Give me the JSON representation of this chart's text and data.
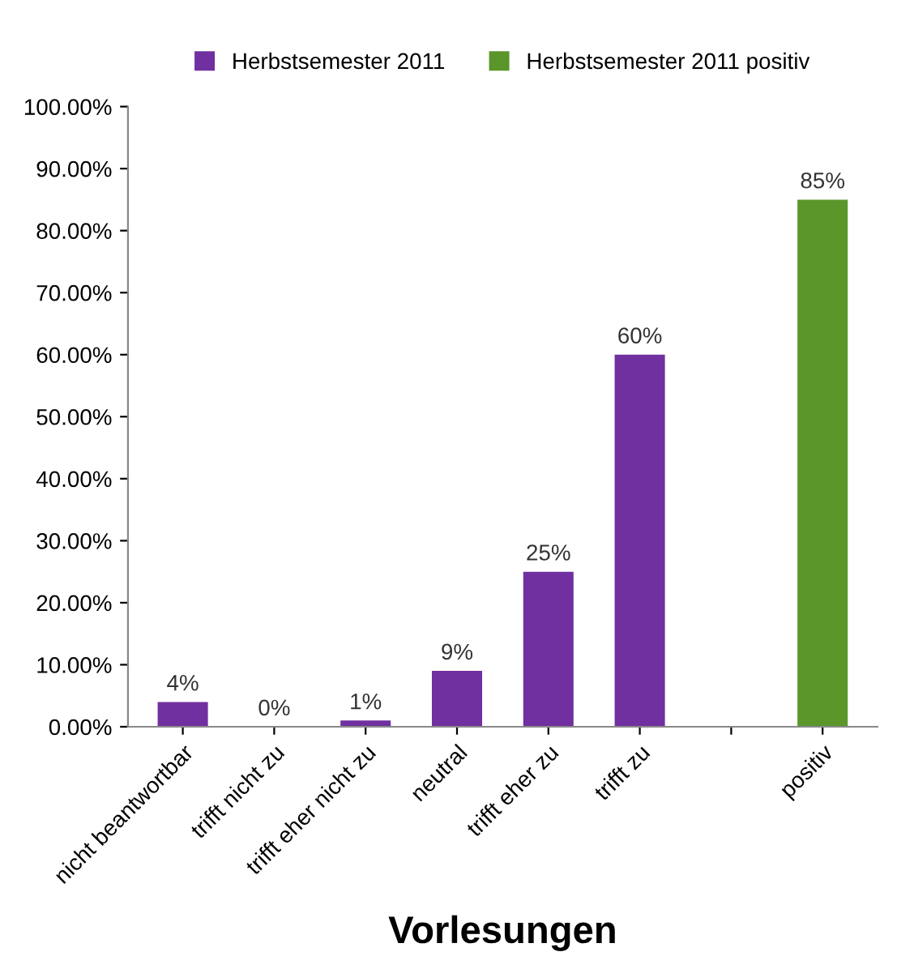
{
  "chart_data": {
    "type": "bar",
    "xlabel": "Vorlesungen",
    "categories": [
      "nicht beantwortbar",
      "trifft nicht zu",
      "trifft eher nicht zu",
      "neutral",
      "trifft eher zu",
      "trifft zu",
      null,
      "positiv"
    ],
    "series": [
      {
        "name": "Herbstsemester 2011",
        "color": "#7030a0",
        "values": [
          4,
          0,
          1,
          9,
          25,
          60,
          null,
          null
        ],
        "value_labels": [
          "4%",
          "0%",
          "1%",
          "9%",
          "25%",
          "60%",
          null,
          null
        ]
      },
      {
        "name": "Herbstsemester 2011 positiv",
        "color": "#5a962a",
        "values": [
          null,
          null,
          null,
          null,
          null,
          null,
          null,
          85
        ],
        "value_labels": [
          null,
          null,
          null,
          null,
          null,
          null,
          null,
          "85%"
        ]
      }
    ],
    "ylim": [
      0,
      100
    ],
    "yticks": [
      {
        "value": 0,
        "label": "0.00%"
      },
      {
        "value": 10,
        "label": "10.00%"
      },
      {
        "value": 20,
        "label": "20.00%"
      },
      {
        "value": 30,
        "label": "30.00%"
      },
      {
        "value": 40,
        "label": "40.00%"
      },
      {
        "value": 50,
        "label": "50.00%"
      },
      {
        "value": 60,
        "label": "60.00%"
      },
      {
        "value": 70,
        "label": "70.00%"
      },
      {
        "value": 80,
        "label": "80.00%"
      },
      {
        "value": 90,
        "label": "90.00%"
      },
      {
        "value": 100,
        "label": "100.00%"
      }
    ],
    "grid": false,
    "legend": "top"
  }
}
